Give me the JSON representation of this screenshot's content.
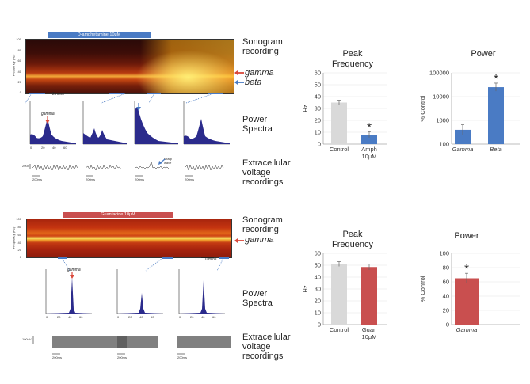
{
  "top": {
    "drug_label": "D-amphetamine 10μM",
    "drug_color": "#4a7bc4",
    "sonogram_label_line1": "Sonogram",
    "sonogram_label_line2": "recording",
    "gamma_label": "gamma",
    "beta_label": "beta",
    "time_scale": "2 mins",
    "freq_axis": "Frequency (Hz)",
    "spectra_label_line1": "Power",
    "spectra_label_line2": "Spectra",
    "spectrum_gamma_annot": "gamma",
    "spectrum_beta_annot": "beta",
    "extra_label_line1": "Extracellular",
    "extra_label_line2": "voltage",
    "extra_label_line3": "recordings",
    "volt_scale": "20uV",
    "ms_scale": "200ms",
    "sharp_wave_line1": "sharp",
    "sharp_wave_line2": "wave"
  },
  "bottom": {
    "drug_label": "Guanfacine 10μM",
    "drug_color": "#c94f4f",
    "sonogram_label_line1": "Sonogram",
    "sonogram_label_line2": "recording",
    "gamma_label": "gamma",
    "time_scale": "10 mins",
    "freq_axis": "Frequency (Hz)",
    "spectra_label_line1": "Power",
    "spectra_label_line2": "Spectra",
    "spectrum_gamma_annot": "gamma",
    "extra_label_line1": "Extracellular",
    "extra_label_line2": "voltage",
    "extra_label_line3": "recordings",
    "volt_scale": "100uV",
    "ms_scale": "200ms"
  },
  "chart_data": [
    {
      "type": "bar",
      "title_line1": "Peak",
      "title_line2": "Frequency",
      "categories": [
        "Control",
        "Amph 10μM"
      ],
      "category_line1": [
        "Control",
        "Amph"
      ],
      "category_line2": [
        "",
        "10μM"
      ],
      "values": [
        35,
        8
      ],
      "errors": [
        2,
        2.5
      ],
      "colors": [
        "#d9d9d9",
        "#4a7bc4"
      ],
      "ylabel": "Hz",
      "ylim": [
        0,
        60
      ],
      "yticks": [
        0,
        10,
        20,
        30,
        40,
        50,
        60
      ],
      "significance": [
        "",
        "*"
      ]
    },
    {
      "type": "bar",
      "title_line1": "Power",
      "title_line2": "",
      "categories": [
        "Gamma",
        "Beta"
      ],
      "values": [
        400,
        25000
      ],
      "errors_low": [
        150,
        8000
      ],
      "errors_high": [
        250,
        12000
      ],
      "colors": [
        "#4a7bc4",
        "#4a7bc4"
      ],
      "ylabel": "% Control",
      "yscale": "log",
      "ylim": [
        100,
        100000
      ],
      "yticks": [
        100,
        1000,
        10000,
        100000
      ],
      "significance": [
        "",
        "*"
      ]
    },
    {
      "type": "bar",
      "title_line1": "Peak",
      "title_line2": "Frequency",
      "categories": [
        "Control",
        "Guan 10μM"
      ],
      "category_line1": [
        "Control",
        "Guan"
      ],
      "category_line2": [
        "",
        "10μM"
      ],
      "values": [
        51,
        48.5
      ],
      "errors": [
        2,
        2.5
      ],
      "colors": [
        "#d9d9d9",
        "#c94f4f"
      ],
      "ylabel": "Hz",
      "ylim": [
        0,
        60
      ],
      "yticks": [
        0,
        10,
        20,
        30,
        40,
        50,
        60
      ],
      "significance": [
        "",
        ""
      ]
    },
    {
      "type": "bar",
      "title_line1": "Power",
      "title_line2": "",
      "categories": [
        "Gamma"
      ],
      "values": [
        65
      ],
      "errors": [
        7
      ],
      "colors": [
        "#c94f4f"
      ],
      "ylabel": "% Control",
      "ylim": [
        0,
        100
      ],
      "yticks": [
        0,
        20,
        40,
        60,
        80,
        100
      ],
      "significance": [
        "*"
      ]
    }
  ]
}
